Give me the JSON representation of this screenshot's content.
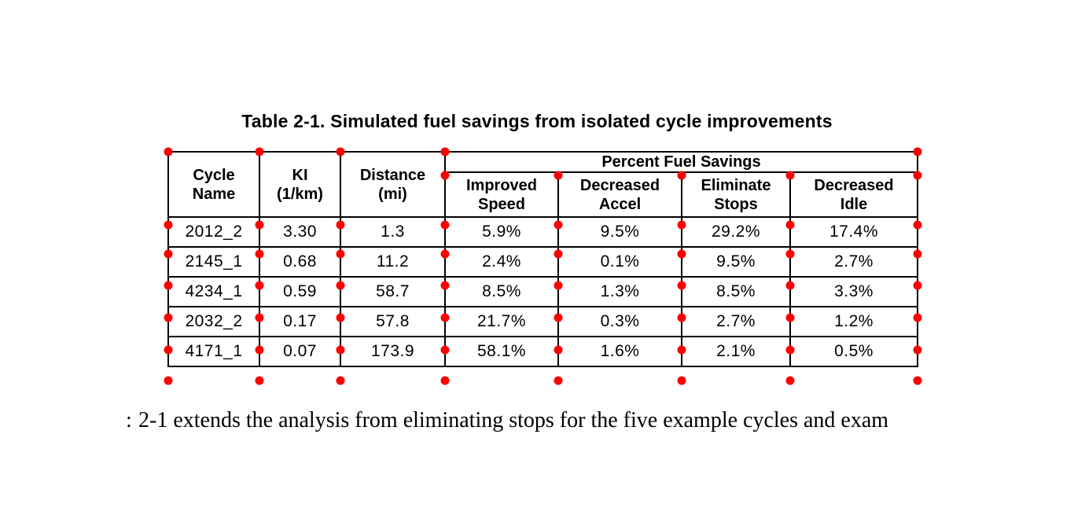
{
  "page": {
    "background": "#ffffff",
    "text_color": "#000000"
  },
  "title": "Table 2-1. Simulated fuel savings from isolated cycle improvements",
  "table": {
    "span_header": "Percent Fuel Savings",
    "columns": [
      {
        "label": "Cycle\nName"
      },
      {
        "label": "KI\n(1/km)"
      },
      {
        "label": "Distance\n(mi)"
      },
      {
        "label": "Improved\nSpeed"
      },
      {
        "label": "Decreased\nAccel"
      },
      {
        "label": "Eliminate\nStops"
      },
      {
        "label": "Decreased\nIdle"
      }
    ],
    "rows": [
      [
        "2012_2",
        "3.30",
        "1.3",
        "5.9%",
        "9.5%",
        "29.2%",
        "17.4%"
      ],
      [
        "2145_1",
        "0.68",
        "11.2",
        "2.4%",
        "0.1%",
        "9.5%",
        "2.7%"
      ],
      [
        "4234_1",
        "0.59",
        "58.7",
        "8.5%",
        "1.3%",
        "8.5%",
        "3.3%"
      ],
      [
        "2032_2",
        "0.17",
        "57.8",
        "21.7%",
        "0.3%",
        "2.7%",
        "1.2%"
      ],
      [
        "4171_1",
        "0.07",
        "173.9",
        "58.1%",
        "1.6%",
        "2.1%",
        "0.5%"
      ]
    ]
  },
  "annotation": {
    "marker": "grid-intersection-dot",
    "dot_color": "#ff0000"
  },
  "body_text": {
    "left_edge_artifact": ":",
    "line": "2-1 extends the analysis from eliminating stops for the five example cycles and exam"
  }
}
